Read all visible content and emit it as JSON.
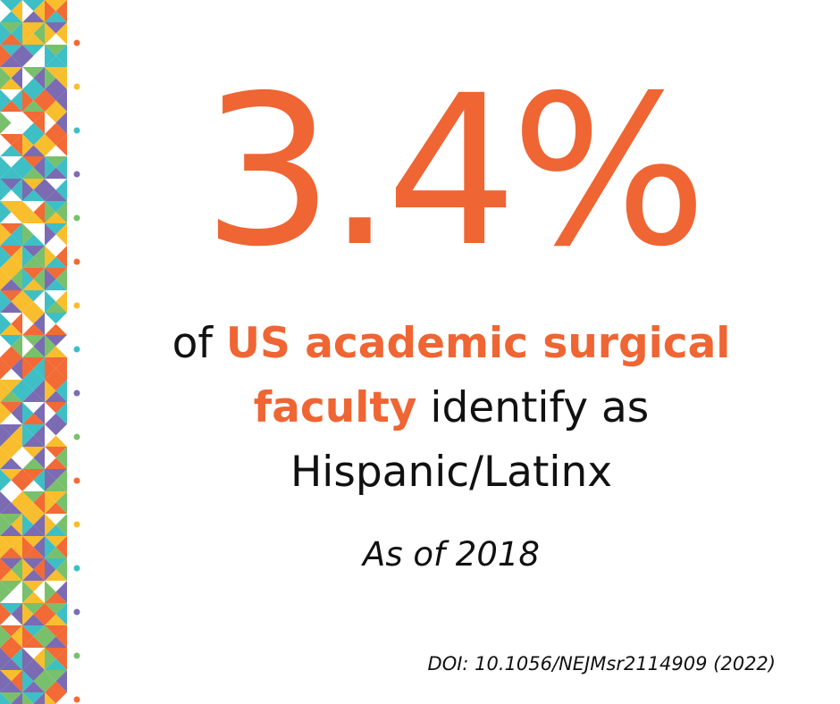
{
  "stat": {
    "value": "3.4%"
  },
  "description": {
    "lead": "of ",
    "highlight_1": "US academic surgical",
    "highlight_2": "faculty",
    "tail_1": " identify as",
    "tail_2": "Hispanic/Latinx"
  },
  "as_of": "As of 2018",
  "doi": "DOI: 10.1056/NEJMsr2114909 (2022)",
  "colors": {
    "accent": "#EF6533",
    "text": "#111111",
    "background": "#FFFFFF",
    "pattern": [
      "#F26A35",
      "#F9BE2E",
      "#3DBFC5",
      "#7B6BB3",
      "#79C06C"
    ]
  },
  "decor": {
    "border_style": "geometric-triangle-pattern"
  }
}
